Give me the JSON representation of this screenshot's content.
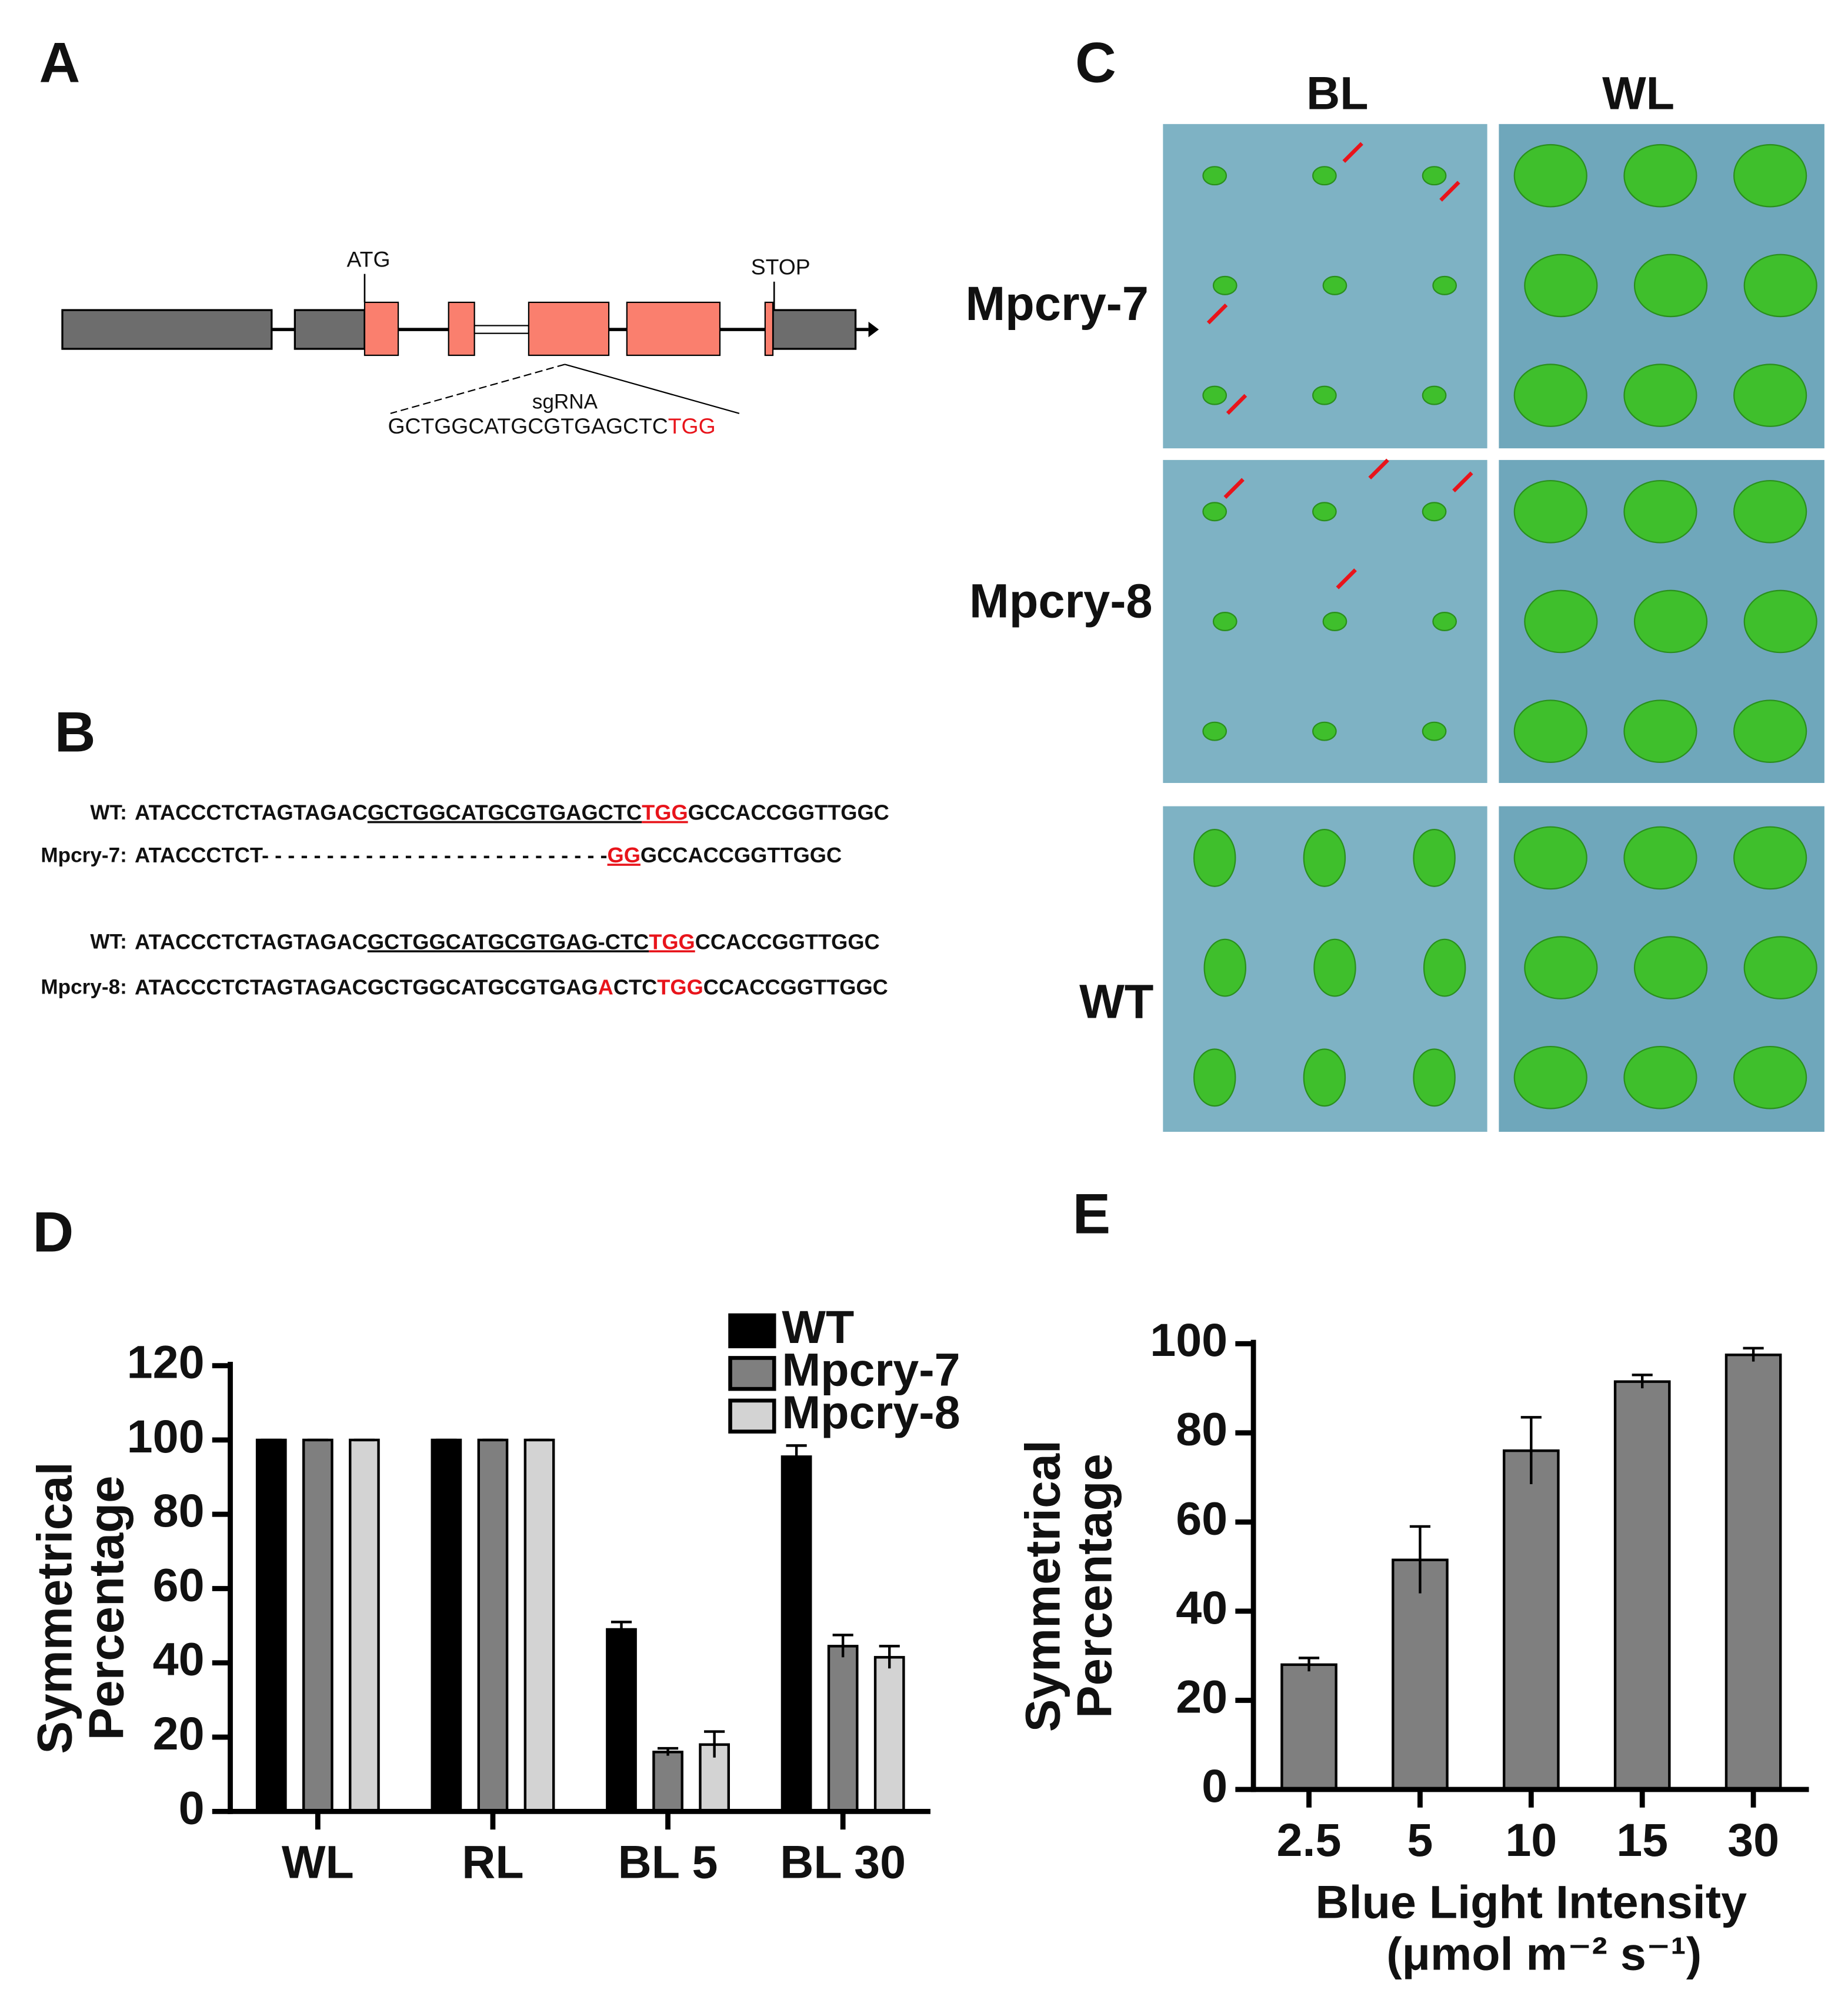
{
  "panel_labels": [
    "A",
    "B",
    "C",
    "D",
    "E"
  ],
  "gene_diagram": {
    "start_label": "ATG",
    "stop_label": "STOP",
    "guide_label": "sgRNA",
    "guide_sequence": "GCTGGCATGCGTGAGCTC",
    "pam": "TGG",
    "pam_color": "#e8141b"
  },
  "alignment": [
    {
      "label": "WT:",
      "segments": [
        {
          "text": "ATACCCTCTAGTAGAC"
        },
        {
          "text": "GCTGGCATGCGTGAGCTC",
          "underline": true
        },
        {
          "text": "TGG",
          "color": "#e8141b",
          "underline": true
        },
        {
          "text": "GCCACCGGTTGGC"
        }
      ]
    },
    {
      "label": "Mpcry-7:",
      "segments": [
        {
          "text": "ATACCCTCT- - - - - - - - - - - - - - - - - - - - - - - - - - -"
        },
        {
          "text": "GG",
          "color": "#e8141b",
          "underline": true
        },
        {
          "text": "GCCACCGGTTGGC"
        }
      ]
    },
    {
      "label": "WT:",
      "segments": [
        {
          "text": "ATACCCTCTAGTAGAC"
        },
        {
          "text": "GCTGGCATGCGTGAG-CTC",
          "underline": true
        },
        {
          "text": "TGG",
          "color": "#e8141b",
          "underline": true
        },
        {
          "text": "CCACCGGTTGGC"
        }
      ]
    },
    {
      "label": "Mpcry-8:",
      "segments": [
        {
          "text": "ATACCCTCTAGTAGACGCTGGCATGCGTGAG"
        },
        {
          "text": "A",
          "color": "#e8141b"
        },
        {
          "text": "CTC"
        },
        {
          "text": "TGG",
          "color": "#e8141b"
        },
        {
          "text": "CCACCGGTTGGC"
        }
      ]
    }
  ],
  "photos": {
    "columns": [
      "BL",
      "WL"
    ],
    "rows": [
      "Mpcry-7",
      "Mpcry-8",
      "WT"
    ]
  },
  "chart_data": [
    {
      "type": "bar",
      "y_label": [
        "Symmetrical",
        "Percentage"
      ],
      "categories": [
        "WL",
        "RL",
        "BL 5",
        "BL 30"
      ],
      "series": [
        {
          "name": "WT",
          "color": "#000000",
          "values": [
            100,
            100,
            49,
            95.5
          ],
          "errors": [
            0,
            0,
            2,
            3
          ]
        },
        {
          "name": "Mpcry-7",
          "color": "#7f7f7f",
          "values": [
            100,
            100,
            16,
            44.5
          ],
          "errors": [
            0,
            0,
            1,
            3
          ]
        },
        {
          "name": "Mpcry-8",
          "color": "#d3d3d3",
          "values": [
            100,
            100,
            18,
            41.5
          ],
          "errors": [
            0,
            0,
            3.5,
            3
          ]
        }
      ],
      "ylim": [
        0,
        120
      ],
      "yticks": [
        0,
        20,
        40,
        60,
        80,
        100,
        120
      ],
      "legend": "upper right"
    },
    {
      "type": "bar",
      "y_label": [
        "Symmetrical",
        "Percentage"
      ],
      "x_label": [
        "Blue Light Intensity",
        "(μmol m⁻² s⁻¹)"
      ],
      "categories": [
        "2.5",
        "5",
        "10",
        "15",
        "30"
      ],
      "values": [
        28,
        51.5,
        76,
        91.5,
        97.5
      ],
      "errors": [
        1.5,
        7.5,
        7.5,
        1.5,
        1.5
      ],
      "color": "#7f7f7f",
      "ylim": [
        0,
        100
      ],
      "yticks": [
        0,
        20,
        40,
        60,
        80,
        100
      ]
    }
  ]
}
